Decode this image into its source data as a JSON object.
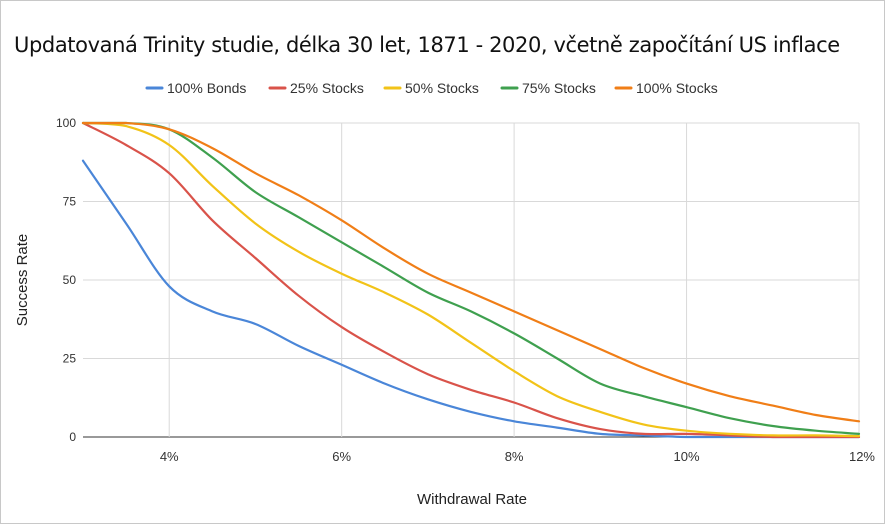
{
  "chart_data": {
    "type": "line",
    "title": "Updatovaná Trinity studie, délka 30 let, 1871 - 2020, včetně započítání US inflace",
    "xlabel": "Withdrawal Rate",
    "ylabel": "Success Rate",
    "xlim": [
      3,
      12
    ],
    "ylim": [
      0,
      100
    ],
    "x_ticks": [
      4,
      6,
      8,
      10,
      12
    ],
    "x_tick_labels": [
      "4%",
      "6%",
      "8%",
      "10%",
      "12%"
    ],
    "y_ticks": [
      0,
      25,
      50,
      75,
      100
    ],
    "y_tick_labels": [
      "0",
      "25",
      "50",
      "75",
      "100"
    ],
    "grid": true,
    "legend_position": "top",
    "x": [
      3,
      3.5,
      4,
      4.5,
      5,
      5.5,
      6,
      6.5,
      7,
      7.5,
      8,
      8.5,
      9,
      9.5,
      10,
      10.5,
      11,
      11.5,
      12
    ],
    "series": [
      {
        "name": "100% Bonds",
        "color": "#4a86d8",
        "values": [
          88,
          68,
          48,
          40,
          36,
          29,
          23,
          17,
          12,
          8,
          5,
          3,
          1,
          0.5,
          0,
          0,
          0,
          0,
          0
        ]
      },
      {
        "name": "25% Stocks",
        "color": "#d9534a",
        "values": [
          100,
          93,
          84,
          69,
          57,
          45,
          35,
          27,
          20,
          15,
          11,
          6,
          2.5,
          1,
          1,
          0.5,
          0,
          0,
          0
        ]
      },
      {
        "name": "50% Stocks",
        "color": "#f2c318",
        "values": [
          100,
          99,
          93,
          80,
          68,
          59,
          52,
          46,
          39,
          30,
          21,
          13,
          8,
          4,
          2,
          1,
          0.5,
          0.5,
          0.3
        ]
      },
      {
        "name": "75% Stocks",
        "color": "#3fa04f",
        "values": [
          100,
          100,
          98,
          89,
          78,
          70,
          62,
          54,
          46,
          40,
          33,
          25,
          17,
          13,
          9.5,
          6,
          3.5,
          2,
          1
        ]
      },
      {
        "name": "100% Stocks",
        "color": "#f07e17",
        "values": [
          100,
          100,
          98,
          92,
          84,
          77,
          69,
          60,
          52,
          46,
          40,
          34,
          28,
          22,
          17,
          13,
          10,
          7,
          5
        ]
      }
    ]
  }
}
